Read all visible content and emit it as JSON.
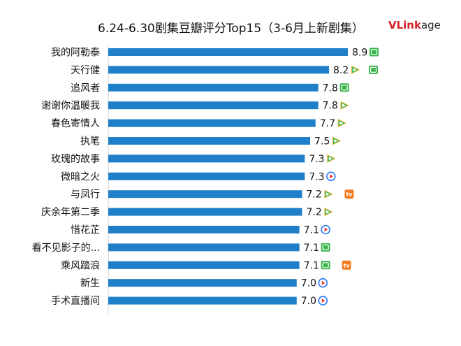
{
  "header": {
    "title": "6.24-6.30剧集豆瓣评分Top15（3-6月上新剧集）",
    "logo_v": "V",
    "logo_rest": "Link",
    "logo_suffix": "age"
  },
  "colors": {
    "bar": "#1f7fc9",
    "iqiyi": "#37b54a",
    "tencent_green": "#2fbf54",
    "tencent_blue": "#2f8cdb",
    "tencent_orange": "#f6a623",
    "youku_red": "#e8393c",
    "youku_blue": "#2979ff",
    "mango": "#f27b21"
  },
  "chart_data": {
    "type": "bar",
    "orientation": "horizontal",
    "title": "6.24-6.30剧集豆瓣评分Top15（3-6月上新剧集）",
    "xlabel": "",
    "ylabel": "",
    "categories": [
      "我的阿勒泰",
      "天行健",
      "追风者",
      "谢谢你温暖我",
      "春色寄情人",
      "执笔",
      "玫瑰的故事",
      "微暗之火",
      "与凤行",
      "庆余年第二季",
      "惜花芷",
      "看不见影子的...",
      "乘风踏浪",
      "新生",
      "手术直播间"
    ],
    "values": [
      8.9,
      8.2,
      7.8,
      7.8,
      7.7,
      7.5,
      7.3,
      7.3,
      7.2,
      7.2,
      7.1,
      7.1,
      7.1,
      7.0,
      7.0
    ],
    "value_labels": [
      "8.9",
      "8.2",
      "7.8",
      "7.8",
      "7.7",
      "7.5",
      "7.3",
      "7.3",
      "7.2",
      "7.2",
      "7.1",
      "7.1",
      "7.1",
      "7.0",
      "7.0"
    ],
    "platforms": [
      [
        "iqiyi"
      ],
      [
        "tencent",
        "iqiyi"
      ],
      [
        "iqiyi"
      ],
      [
        "tencent"
      ],
      [
        "tencent"
      ],
      [
        "tencent"
      ],
      [
        "tencent"
      ],
      [
        "youku"
      ],
      [
        "tencent",
        "mango"
      ],
      [
        "tencent"
      ],
      [
        "youku"
      ],
      [
        "iqiyi"
      ],
      [
        "iqiyi",
        "mango"
      ],
      [
        "youku"
      ],
      [
        "youku"
      ]
    ],
    "grid": false,
    "legend": "none"
  }
}
